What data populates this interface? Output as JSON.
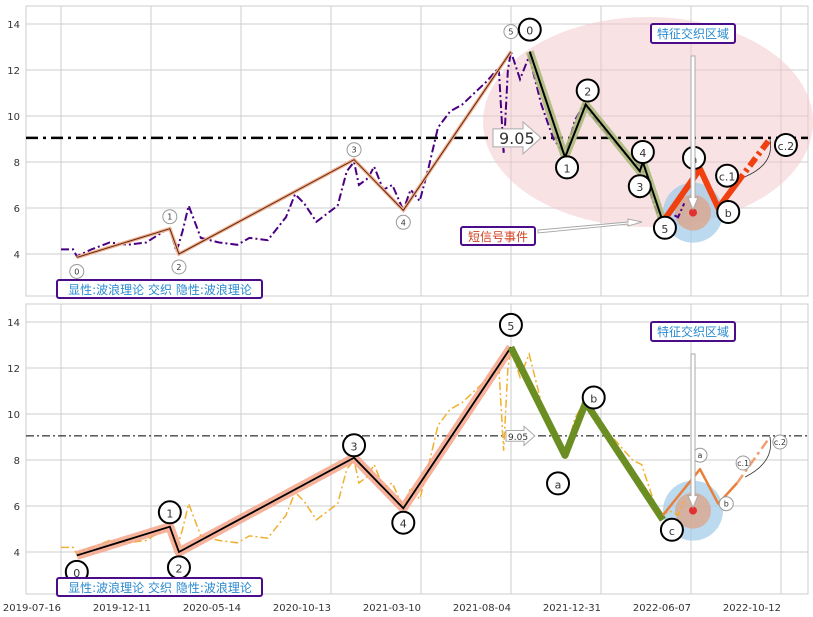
{
  "chart_data": [
    {
      "type": "line",
      "panel": "top",
      "title": "",
      "xlabel": "",
      "ylabel": "",
      "ylim": [
        2.3,
        14.8
      ],
      "y_ticks": [
        "4",
        "6",
        "8",
        "10",
        "12",
        "14"
      ],
      "x_unit": "days since 2019-07-16",
      "reference_line": {
        "value": 9.05,
        "label": "9.05"
      },
      "price_color": "#4b0082",
      "legend_text": "显性:波浪理论 交织 隐性:波浪理论",
      "annotations": {
        "signal": "短信号事件",
        "zone": "特征交织区域"
      },
      "impulse_wave": [
        {
          "label": "0",
          "day": 26,
          "value": 3.85
        },
        {
          "label": "1",
          "day": 179,
          "value": 5.1
        },
        {
          "label": "2",
          "day": 194,
          "value": 4.0
        },
        {
          "label": "3",
          "day": 482,
          "value": 8.1
        },
        {
          "label": "4",
          "day": 563,
          "value": 5.9
        },
        {
          "label": "5",
          "day": 740,
          "value": 12.8
        }
      ],
      "correction_wave": [
        {
          "label": "0",
          "day": 771,
          "value": 12.8
        },
        {
          "label": "1",
          "day": 829,
          "value": 8.2
        },
        {
          "label": "2",
          "day": 863,
          "value": 10.5
        },
        {
          "label": "3",
          "day": 952,
          "value": 7.6
        },
        {
          "label": "4",
          "day": 957,
          "value": 8.0
        },
        {
          "label": "5",
          "day": 990,
          "value": 5.4
        }
      ],
      "forecast_wave": [
        {
          "label": "",
          "day": 990,
          "value": 5.4
        },
        {
          "label": "a",
          "day": 1051,
          "value": 7.7
        },
        {
          "label": "b",
          "day": 1081,
          "value": 6.0
        },
        {
          "label": "c.1",
          "day": 1112,
          "value": 7.1
        },
        {
          "label": "c.2",
          "day": 1166,
          "value": 9.0
        }
      ]
    },
    {
      "type": "line",
      "panel": "bottom",
      "ylim": [
        2.3,
        14.8
      ],
      "y_ticks": [
        "4",
        "6",
        "8",
        "10",
        "12",
        "14"
      ],
      "x_ticks": [
        "2019-07-16",
        "2019-12-11",
        "2020-05-14",
        "2020-10-13",
        "2021-03-10",
        "2021-08-04",
        "2021-12-31",
        "2022-06-07",
        "2022-10-12"
      ],
      "reference_line": {
        "value": 9.05,
        "label": "9.05"
      },
      "price_color": "#f0b030",
      "legend_text": "显性:波浪理论 交织 隐性:波浪理论",
      "annotations": {
        "zone": "特征交织区域"
      },
      "impulse_wave": [
        {
          "label": "0",
          "day": 26,
          "value": 3.85
        },
        {
          "label": "1",
          "day": 179,
          "value": 5.1
        },
        {
          "label": "2",
          "day": 194,
          "value": 4.0
        },
        {
          "label": "3",
          "day": 482,
          "value": 8.1
        },
        {
          "label": "4",
          "day": 563,
          "value": 5.9
        },
        {
          "label": "5",
          "day": 740,
          "value": 12.9
        }
      ],
      "correction_wave": [
        {
          "label": "5",
          "day": 740,
          "value": 12.9
        },
        {
          "label": "a",
          "day": 829,
          "value": 8.2
        },
        {
          "label": "b",
          "day": 863,
          "value": 10.5
        },
        {
          "label": "c",
          "day": 990,
          "value": 5.4
        }
      ],
      "forecast_wave": [
        {
          "label": "",
          "day": 990,
          "value": 5.6
        },
        {
          "label": "a",
          "day": 1051,
          "value": 7.6
        },
        {
          "label": "b",
          "day": 1081,
          "value": 6.1
        },
        {
          "label": "c.1",
          "day": 1112,
          "value": 7.0
        },
        {
          "label": "c.2",
          "day": 1166,
          "value": 9.0
        }
      ]
    }
  ],
  "price_series": [
    [
      0,
      4.2
    ],
    [
      20,
      4.2
    ],
    [
      26,
      3.9
    ],
    [
      50,
      4.2
    ],
    [
      80,
      4.5
    ],
    [
      110,
      4.4
    ],
    [
      140,
      4.5
    ],
    [
      170,
      5.0
    ],
    [
      179,
      5.1
    ],
    [
      190,
      4.1
    ],
    [
      200,
      5.0
    ],
    [
      210,
      6.1
    ],
    [
      220,
      5.4
    ],
    [
      230,
      4.7
    ],
    [
      260,
      4.5
    ],
    [
      290,
      4.4
    ],
    [
      310,
      4.7
    ],
    [
      340,
      4.6
    ],
    [
      370,
      5.6
    ],
    [
      385,
      6.6
    ],
    [
      400,
      6.2
    ],
    [
      420,
      5.4
    ],
    [
      440,
      5.8
    ],
    [
      455,
      6.1
    ],
    [
      470,
      7.6
    ],
    [
      482,
      8.0
    ],
    [
      490,
      7.0
    ],
    [
      505,
      7.3
    ],
    [
      515,
      7.8
    ],
    [
      530,
      6.8
    ],
    [
      545,
      7.0
    ],
    [
      563,
      5.9
    ],
    [
      575,
      6.8
    ],
    [
      590,
      6.3
    ],
    [
      605,
      7.8
    ],
    [
      620,
      9.5
    ],
    [
      640,
      10.2
    ],
    [
      660,
      10.5
    ],
    [
      680,
      11.0
    ],
    [
      700,
      11.5
    ],
    [
      720,
      12.1
    ],
    [
      728,
      8.4
    ],
    [
      735,
      12.0
    ],
    [
      740,
      12.8
    ],
    [
      755,
      11.6
    ],
    [
      770,
      12.6
    ],
    [
      790,
      10.5
    ],
    [
      810,
      9.0
    ],
    [
      830,
      8.3
    ],
    [
      845,
      9.8
    ],
    [
      860,
      10.5
    ],
    [
      880,
      9.8
    ],
    [
      900,
      9.2
    ],
    [
      920,
      8.6
    ],
    [
      940,
      8.0
    ],
    [
      955,
      7.8
    ],
    [
      970,
      6.6
    ],
    [
      985,
      5.5
    ],
    [
      1000,
      5.8
    ],
    [
      1015,
      5.6
    ],
    [
      1025,
      6.2
    ]
  ]
}
